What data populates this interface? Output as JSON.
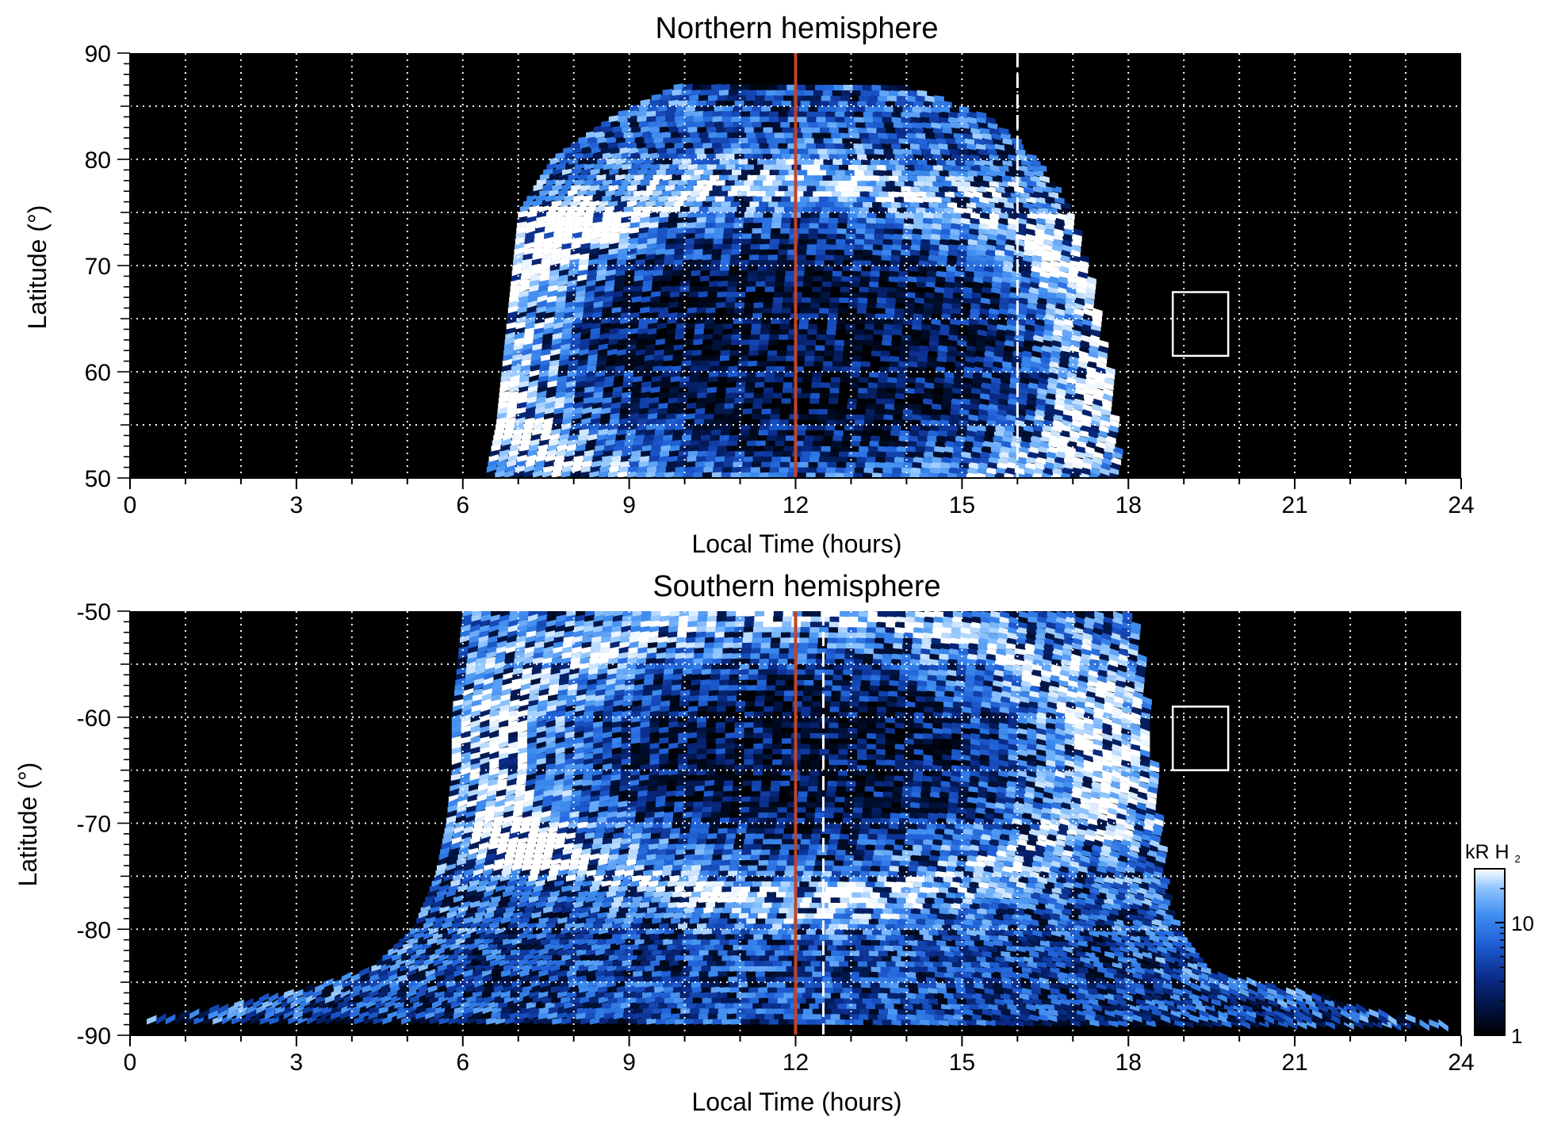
{
  "colors": {
    "background": "#000000",
    "grid": "#ffffff",
    "noon_line": "#c0442a",
    "terminator_line": "#ffffff",
    "box": "#ffffff",
    "colormap": [
      "#000000",
      "#00113a",
      "#0a2d8c",
      "#1f5fd6",
      "#3f8df0",
      "#8cc3ff",
      "#ffffff"
    ]
  },
  "chart_data": [
    {
      "type": "heatmap",
      "title": "Northern hemisphere",
      "xlabel": "Local Time (hours)",
      "ylabel": "Latitude (°)",
      "xlim": [
        0,
        24
      ],
      "ylim": [
        50,
        90
      ],
      "xticks": [
        0,
        3,
        6,
        9,
        12,
        15,
        18,
        21,
        24
      ],
      "yticks": [
        50,
        60,
        70,
        80,
        90
      ],
      "grid": true,
      "grid_x": [
        1,
        2,
        3,
        4,
        5,
        6,
        7,
        8,
        9,
        10,
        11,
        12,
        13,
        14,
        15,
        16,
        17,
        18,
        19,
        20,
        21,
        22,
        23
      ],
      "grid_y": [
        55,
        60,
        65,
        70,
        75,
        80,
        85
      ],
      "vertical_lines": [
        {
          "x": 12,
          "style": "solid",
          "color": "#c0442a"
        },
        {
          "x": 16,
          "style": "dashed",
          "color": "#ffffff"
        }
      ],
      "box": {
        "x": [
          18.8,
          19.8
        ],
        "y": [
          61.5,
          67.5
        ]
      },
      "coverage": {
        "lat": [
          50,
          55,
          60,
          65,
          70,
          75,
          80,
          84,
          87
        ],
        "lt_start": [
          6.4,
          6.6,
          6.7,
          6.8,
          6.9,
          7.0,
          7.6,
          8.7,
          9.9
        ],
        "lt_end": [
          17.8,
          17.7,
          17.6,
          17.4,
          17.2,
          16.9,
          16.3,
          15.4,
          13.9
        ]
      },
      "oval_band": {
        "center_lt": 12,
        "center_lat": 62,
        "rx_hours": 5.3,
        "ry_deg": 14.5,
        "width_deg": 4
      },
      "bright_spots": [
        {
          "lt": 7.9,
          "lat": 73
        }
      ],
      "colorbar_max_kR": 30
    },
    {
      "type": "heatmap",
      "title": "Southern hemisphere",
      "xlabel": "Local Time (hours)",
      "ylabel": "Latitude (°)",
      "xlim": [
        0,
        24
      ],
      "ylim": [
        -90,
        -50
      ],
      "xticks": [
        0,
        3,
        6,
        9,
        12,
        15,
        18,
        21,
        24
      ],
      "yticks": [
        -90,
        -80,
        -70,
        -60,
        -50
      ],
      "grid": true,
      "grid_x": [
        1,
        2,
        3,
        4,
        5,
        6,
        7,
        8,
        9,
        10,
        11,
        12,
        13,
        14,
        15,
        16,
        17,
        18,
        19,
        20,
        21,
        22,
        23
      ],
      "grid_y": [
        -85,
        -80,
        -75,
        -70,
        -65,
        -60,
        -55
      ],
      "vertical_lines": [
        {
          "x": 12,
          "style": "solid",
          "color": "#c0442a"
        },
        {
          "x": 12.5,
          "style": "dashed",
          "color": "#ffffff"
        }
      ],
      "box": {
        "x": [
          18.8,
          19.8
        ],
        "y": [
          -65,
          -59
        ]
      },
      "coverage": {
        "lat": [
          -50,
          -55,
          -60,
          -65,
          -70,
          -75,
          -80,
          -84,
          -86,
          -88,
          -89
        ],
        "lt_start": [
          6.0,
          5.9,
          5.8,
          5.8,
          5.7,
          5.5,
          5.1,
          4.3,
          3.0,
          1.2,
          0.0
        ],
        "lt_end": [
          18.0,
          18.2,
          18.3,
          18.4,
          18.5,
          18.6,
          18.8,
          19.5,
          21.3,
          22.8,
          24.0
        ]
      },
      "oval_band": {
        "center_lt": 12,
        "center_lat": -64,
        "rx_hours": 5.0,
        "ry_deg": 12.5,
        "width_deg": 4
      },
      "bright_spots": [
        {
          "lt": 7.0,
          "lat": -73
        }
      ],
      "colorbar_max_kR": 30
    }
  ],
  "colorbar": {
    "label_main": "kR H",
    "label_sub": "2",
    "ticks": [
      {
        "value": 1,
        "label": "1"
      },
      {
        "value": 10,
        "label": "10"
      }
    ],
    "vmin": 1,
    "vmax": 30,
    "scale": "log"
  }
}
